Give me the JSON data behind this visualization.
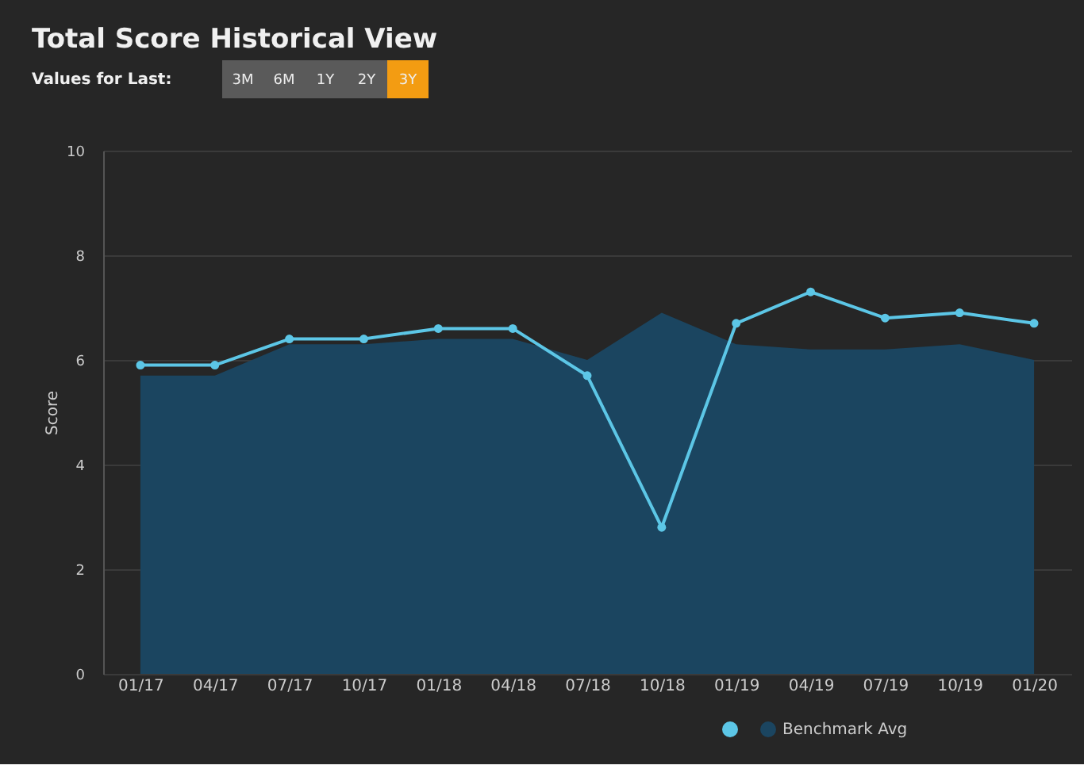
{
  "chart_data": {
    "type": "line",
    "title": "Total Score Historical View",
    "subtitle": "Values for Last:",
    "annotations": [
      "3M",
      "6M",
      "1Y",
      "2Y",
      "3Y"
    ],
    "categories": [
      "01/17",
      "04/17",
      "07/17",
      "10/17",
      "01/18",
      "04/18",
      "07/18",
      "10/18",
      "01/19",
      "04/19",
      "07/19",
      "10/19",
      "01/20"
    ],
    "series": [
      {
        "color": "#5cc6e6",
        "marker": "circle",
        "values": [
          5.9,
          5.9,
          6.4,
          6.4,
          6.6,
          6.6,
          5.7,
          2.8,
          6.7,
          7.3,
          6.8,
          6.9,
          6.7
        ]
      },
      {
        "type": "area",
        "name": "Benchmark Avg",
        "color": "#1b4560",
        "values": [
          5.7,
          5.7,
          6.3,
          6.3,
          6.4,
          6.4,
          6.0,
          6.9,
          6.3,
          6.2,
          6.2,
          6.3,
          6.0
        ]
      }
    ],
    "ylabel": "Score",
    "ylim": [
      0,
      10
    ],
    "yticks": [
      0,
      2,
      4,
      6,
      8,
      10
    ],
    "grid": "y",
    "legend": "bottom right"
  }
}
